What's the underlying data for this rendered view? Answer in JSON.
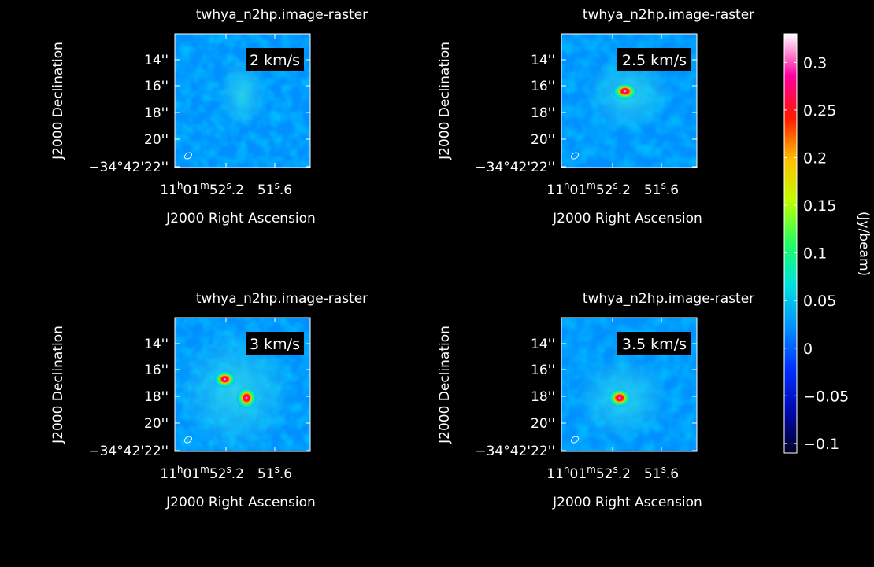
{
  "colors": {
    "background": "#000000",
    "foreground": "#ffffff"
  },
  "chart_data": [
    {
      "type": "heatmap",
      "title": "twhya_n2hp.image-raster",
      "label": "2 km/s",
      "xlabel": "J2000 Right Ascension",
      "ylabel": "J2000 Declination",
      "x_ticks": [
        {
          "h": "11",
          "m": "01",
          "s": "52",
          "frac": ".2"
        },
        {
          "s": "51",
          "frac": ".6"
        }
      ],
      "y_ticks": [
        "14''",
        "16''",
        "18''",
        "20''",
        "−34°42'22''"
      ],
      "peaks": []
    },
    {
      "type": "heatmap",
      "title": "twhya_n2hp.image-raster",
      "label": "2.5 km/s",
      "xlabel": "J2000 Right Ascension",
      "ylabel": "J2000 Declination",
      "x_ticks": [
        {
          "h": "11",
          "m": "01",
          "s": "52",
          "frac": ".2"
        },
        {
          "s": "51",
          "frac": ".6"
        }
      ],
      "y_ticks": [
        "14''",
        "16''",
        "18''",
        "20''",
        "−34°42'22''"
      ],
      "peaks": [
        {
          "value": 0.32
        }
      ]
    },
    {
      "type": "heatmap",
      "title": "twhya_n2hp.image-raster",
      "label": "3 km/s",
      "xlabel": "J2000 Right Ascension",
      "ylabel": "J2000 Declination",
      "x_ticks": [
        {
          "h": "11",
          "m": "01",
          "s": "52",
          "frac": ".2"
        },
        {
          "s": "51",
          "frac": ".6"
        }
      ],
      "y_ticks": [
        "14''",
        "16''",
        "18''",
        "20''",
        "−34°42'22''"
      ],
      "peaks": [
        {
          "value": 0.3
        },
        {
          "value": 0.32
        }
      ]
    },
    {
      "type": "heatmap",
      "title": "twhya_n2hp.image-raster",
      "label": "3.5 km/s",
      "xlabel": "J2000 Right Ascension",
      "ylabel": "J2000 Declination",
      "x_ticks": [
        {
          "h": "11",
          "m": "01",
          "s": "52",
          "frac": ".2"
        },
        {
          "s": "51",
          "frac": ".6"
        }
      ],
      "y_ticks": [
        "14''",
        "16''",
        "18''",
        "20''",
        "−34°42'22''"
      ],
      "peaks": [
        {
          "value": 0.32
        }
      ]
    }
  ],
  "colorbar": {
    "label": "(Jy/beam)",
    "range": [
      -0.11,
      0.33
    ],
    "ticks": [
      {
        "value": 0.3,
        "text": "0.3"
      },
      {
        "value": 0.25,
        "text": "0.25"
      },
      {
        "value": 0.2,
        "text": "0.2"
      },
      {
        "value": 0.15,
        "text": "0.15"
      },
      {
        "value": 0.1,
        "text": "0.1"
      },
      {
        "value": 0.05,
        "text": "0.05"
      },
      {
        "value": 0,
        "text": "0"
      },
      {
        "value": -0.05,
        "text": "−0.05"
      },
      {
        "value": -0.1,
        "text": "−0.1"
      }
    ],
    "colormap": [
      "#000020",
      "#0008b0",
      "#0030ff",
      "#0090ff",
      "#00e0e0",
      "#20ff60",
      "#c0ff00",
      "#ffc000",
      "#ff1800",
      "#ff00a0",
      "#ffffff"
    ]
  }
}
